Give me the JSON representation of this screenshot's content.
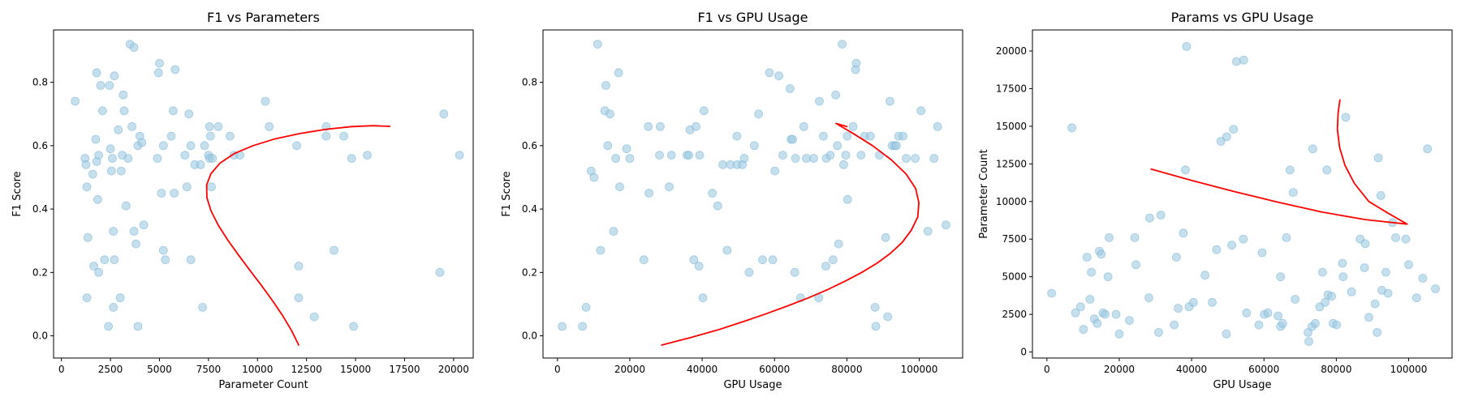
{
  "chart_data": [
    {
      "type": "scatter",
      "title": "F1 vs Parameters",
      "xlabel": "Parameter Count",
      "ylabel": "F1 Score",
      "xlim": [
        -400,
        21000
      ],
      "ylim": [
        -0.07,
        0.965
      ],
      "xticks": [
        0,
        2500,
        5000,
        7500,
        10000,
        12500,
        15000,
        17500,
        20000
      ],
      "xtick_labels": [
        "0",
        "2500",
        "5000",
        "7500",
        "10000",
        "12500",
        "15000",
        "17500",
        "20000"
      ],
      "yticks": [
        0.0,
        0.2,
        0.4,
        0.6,
        0.8
      ],
      "ytick_labels": [
        "0.0",
        "0.2",
        "0.4",
        "0.6",
        "0.8"
      ],
      "grid": false,
      "point_color": "#9ecae1",
      "line_color": "#ff0000",
      "points": [
        [
          700,
          0.74
        ],
        [
          1200,
          0.56
        ],
        [
          1250,
          0.54
        ],
        [
          1300,
          0.47
        ],
        [
          1350,
          0.31
        ],
        [
          1300,
          0.12
        ],
        [
          1600,
          0.51
        ],
        [
          1650,
          0.22
        ],
        [
          1750,
          0.62
        ],
        [
          1800,
          0.83
        ],
        [
          1800,
          0.55
        ],
        [
          1850,
          0.43
        ],
        [
          1900,
          0.57
        ],
        [
          1900,
          0.2
        ],
        [
          2000,
          0.79
        ],
        [
          2100,
          0.71
        ],
        [
          2200,
          0.24
        ],
        [
          2400,
          0.03
        ],
        [
          2450,
          0.79
        ],
        [
          2500,
          0.59
        ],
        [
          2550,
          0.52
        ],
        [
          2600,
          0.56
        ],
        [
          2650,
          0.33
        ],
        [
          2700,
          0.82
        ],
        [
          2650,
          0.09
        ],
        [
          2700,
          0.24
        ],
        [
          2900,
          0.65
        ],
        [
          3000,
          0.12
        ],
        [
          3050,
          0.52
        ],
        [
          3100,
          0.57
        ],
        [
          3150,
          0.76
        ],
        [
          3200,
          0.71
        ],
        [
          3300,
          0.41
        ],
        [
          3400,
          0.56
        ],
        [
          3500,
          0.92
        ],
        [
          3600,
          0.66
        ],
        [
          3700,
          0.33
        ],
        [
          3700,
          0.91
        ],
        [
          3800,
          0.29
        ],
        [
          3900,
          0.03
        ],
        [
          3900,
          0.6
        ],
        [
          4000,
          0.63
        ],
        [
          4100,
          0.61
        ],
        [
          4200,
          0.35
        ],
        [
          4900,
          0.56
        ],
        [
          4950,
          0.83
        ],
        [
          5000,
          0.86
        ],
        [
          5100,
          0.45
        ],
        [
          5200,
          0.6
        ],
        [
          5200,
          0.27
        ],
        [
          5300,
          0.24
        ],
        [
          5600,
          0.63
        ],
        [
          5700,
          0.71
        ],
        [
          5750,
          0.45
        ],
        [
          5800,
          0.84
        ],
        [
          6300,
          0.57
        ],
        [
          6400,
          0.47
        ],
        [
          6500,
          0.7
        ],
        [
          6600,
          0.6
        ],
        [
          6600,
          0.24
        ],
        [
          6800,
          0.54
        ],
        [
          7100,
          0.54
        ],
        [
          7200,
          0.09
        ],
        [
          7300,
          0.6
        ],
        [
          7500,
          0.57
        ],
        [
          7550,
          0.56
        ],
        [
          7550,
          0.66
        ],
        [
          7600,
          0.63
        ],
        [
          7650,
          0.47
        ],
        [
          7700,
          0.56
        ],
        [
          8000,
          0.66
        ],
        [
          8600,
          0.63
        ],
        [
          8800,
          0.57
        ],
        [
          9100,
          0.57
        ],
        [
          10400,
          0.74
        ],
        [
          10600,
          0.66
        ],
        [
          12000,
          0.6
        ],
        [
          12100,
          0.22
        ],
        [
          12100,
          0.12
        ],
        [
          12900,
          0.06
        ],
        [
          13500,
          0.66
        ],
        [
          13500,
          0.63
        ],
        [
          13900,
          0.27
        ],
        [
          14400,
          0.63
        ],
        [
          14800,
          0.56
        ],
        [
          14900,
          0.03
        ],
        [
          15600,
          0.57
        ],
        [
          19300,
          0.2
        ],
        [
          19500,
          0.7
        ],
        [
          20300,
          0.57
        ]
      ],
      "curve_x": [
        12101.6,
        11740,
        11298,
        10787,
        10224,
        9632,
        9040,
        8482,
        7998,
        7629,
        7419,
        7406,
        7624,
        8093,
        8815,
        9774,
        10929,
        12214,
        13541,
        14802,
        15880,
        16748
      ],
      "curve_y": [
        -0.029,
        0.016,
        0.062,
        0.109,
        0.157,
        0.205,
        0.254,
        0.302,
        0.349,
        0.394,
        0.436,
        0.476,
        0.512,
        0.545,
        0.575,
        0.6,
        0.622,
        0.639,
        0.652,
        0.66,
        0.663,
        0.661
      ]
    },
    {
      "type": "scatter",
      "title": "F1 vs GPU Usage",
      "xlabel": "GPU Usage",
      "ylabel": "F1 Score",
      "xlim": [
        -4000,
        112000
      ],
      "ylim": [
        -0.07,
        0.965
      ],
      "xticks": [
        0,
        20000,
        40000,
        60000,
        80000,
        100000
      ],
      "xtick_labels": [
        "0",
        "20000",
        "40000",
        "60000",
        "80000",
        "100000"
      ],
      "yticks": [
        0.0,
        0.2,
        0.4,
        0.6,
        0.8
      ],
      "ytick_labels": [
        "0.0",
        "0.2",
        "0.4",
        "0.6",
        "0.8"
      ],
      "grid": false,
      "point_color": "#9ecae1",
      "line_color": "#ff0000",
      "points": [
        [
          1300,
          0.03
        ],
        [
          6900,
          0.03
        ],
        [
          7900,
          0.09
        ],
        [
          9300,
          0.52
        ],
        [
          10100,
          0.5
        ],
        [
          11100,
          0.92
        ],
        [
          11900,
          0.27
        ],
        [
          13100,
          0.71
        ],
        [
          13400,
          0.79
        ],
        [
          13900,
          0.6
        ],
        [
          14500,
          0.7
        ],
        [
          15500,
          0.33
        ],
        [
          16100,
          0.56
        ],
        [
          16900,
          0.83
        ],
        [
          17200,
          0.47
        ],
        [
          19100,
          0.59
        ],
        [
          20000,
          0.56
        ],
        [
          23900,
          0.24
        ],
        [
          25300,
          0.45
        ],
        [
          25100,
          0.66
        ],
        [
          28200,
          0.57
        ],
        [
          28400,
          0.66
        ],
        [
          30900,
          0.47
        ],
        [
          31500,
          0.57
        ],
        [
          35800,
          0.57
        ],
        [
          36300,
          0.57
        ],
        [
          36600,
          0.65
        ],
        [
          37700,
          0.24
        ],
        [
          38300,
          0.66
        ],
        [
          39100,
          0.22
        ],
        [
          39300,
          0.57
        ],
        [
          40200,
          0.12
        ],
        [
          40500,
          0.71
        ],
        [
          42800,
          0.45
        ],
        [
          44300,
          0.41
        ],
        [
          45700,
          0.54
        ],
        [
          46900,
          0.27
        ],
        [
          47800,
          0.54
        ],
        [
          49700,
          0.54
        ],
        [
          49600,
          0.63
        ],
        [
          51100,
          0.54
        ],
        [
          51600,
          0.56
        ],
        [
          53000,
          0.2
        ],
        [
          54400,
          0.6
        ],
        [
          55600,
          0.7
        ],
        [
          56700,
          0.24
        ],
        [
          58600,
          0.83
        ],
        [
          59500,
          0.24
        ],
        [
          60100,
          0.52
        ],
        [
          61200,
          0.82
        ],
        [
          62300,
          0.57
        ],
        [
          64300,
          0.78
        ],
        [
          64600,
          0.62
        ],
        [
          65000,
          0.62
        ],
        [
          65600,
          0.2
        ],
        [
          65800,
          0.56
        ],
        [
          67200,
          0.12
        ],
        [
          68100,
          0.66
        ],
        [
          68800,
          0.56
        ],
        [
          70800,
          0.56
        ],
        [
          72200,
          0.12
        ],
        [
          72400,
          0.74
        ],
        [
          73500,
          0.63
        ],
        [
          74200,
          0.22
        ],
        [
          74300,
          0.56
        ],
        [
          75400,
          0.57
        ],
        [
          76200,
          0.24
        ],
        [
          76900,
          0.76
        ],
        [
          77400,
          0.6
        ],
        [
          77700,
          0.29
        ],
        [
          78700,
          0.92
        ],
        [
          79100,
          0.54
        ],
        [
          79700,
          0.57
        ],
        [
          80100,
          0.63
        ],
        [
          80200,
          0.43
        ],
        [
          81700,
          0.66
        ],
        [
          82400,
          0.84
        ],
        [
          82600,
          0.86
        ],
        [
          83900,
          0.57
        ],
        [
          84900,
          0.63
        ],
        [
          86500,
          0.63
        ],
        [
          87800,
          0.09
        ],
        [
          88000,
          0.03
        ],
        [
          89000,
          0.57
        ],
        [
          90700,
          0.31
        ],
        [
          91300,
          0.06
        ],
        [
          91900,
          0.74
        ],
        [
          92500,
          0.6
        ],
        [
          93200,
          0.6
        ],
        [
          93700,
          0.6
        ],
        [
          94300,
          0.63
        ],
        [
          95500,
          0.63
        ],
        [
          96400,
          0.56
        ],
        [
          98900,
          0.56
        ],
        [
          100500,
          0.71
        ],
        [
          102400,
          0.33
        ],
        [
          104100,
          0.56
        ],
        [
          105100,
          0.66
        ],
        [
          107400,
          0.35
        ]
      ],
      "curve_x": [
        28800,
        36900,
        44700,
        51400,
        57800,
        63800,
        69400,
        74700,
        79600,
        84100,
        88300,
        92000,
        95300,
        97800,
        99600,
        99900,
        99000,
        96400,
        92300,
        87100,
        81500,
        77000,
        80000
      ],
      "curve_y": [
        -0.029,
        -0.005,
        0.02,
        0.045,
        0.07,
        0.095,
        0.12,
        0.146,
        0.173,
        0.2,
        0.229,
        0.26,
        0.295,
        0.333,
        0.375,
        0.42,
        0.465,
        0.51,
        0.555,
        0.6,
        0.64,
        0.67,
        0.66
      ]
    },
    {
      "type": "scatter",
      "title": "Params vs GPU Usage",
      "xlabel": "GPU Usage",
      "ylabel": "Parameter Count",
      "xlim": [
        -4000,
        112000
      ],
      "ylim": [
        -400,
        21400
      ],
      "xticks": [
        0,
        20000,
        40000,
        60000,
        80000,
        100000
      ],
      "xtick_labels": [
        "0",
        "20000",
        "40000",
        "60000",
        "80000",
        "100000"
      ],
      "yticks": [
        0,
        2500,
        5000,
        7500,
        10000,
        12500,
        15000,
        17500,
        20000
      ],
      "ytick_labels": [
        "0",
        "2500",
        "5000",
        "7500",
        "10000",
        "12500",
        "15000",
        "17500",
        "20000"
      ],
      "grid": false,
      "point_color": "#9ecae1",
      "line_color": "#ff0000",
      "points": [
        [
          1300,
          3900
        ],
        [
          6900,
          14900
        ],
        [
          7900,
          2600
        ],
        [
          9300,
          3000
        ],
        [
          10100,
          1500
        ],
        [
          11100,
          6300
        ],
        [
          11900,
          3500
        ],
        [
          12300,
          5300
        ],
        [
          13100,
          2200
        ],
        [
          13900,
          1900
        ],
        [
          14500,
          6700
        ],
        [
          15000,
          6500
        ],
        [
          15500,
          2600
        ],
        [
          16100,
          2500
        ],
        [
          16900,
          5000
        ],
        [
          17200,
          7600
        ],
        [
          19100,
          2500
        ],
        [
          20000,
          1200
        ],
        [
          22800,
          2100
        ],
        [
          24300,
          7600
        ],
        [
          24600,
          5800
        ],
        [
          28200,
          3600
        ],
        [
          28400,
          8900
        ],
        [
          30900,
          1300
        ],
        [
          31500,
          9100
        ],
        [
          35200,
          1800
        ],
        [
          35800,
          6300
        ],
        [
          36300,
          2900
        ],
        [
          37700,
          7900
        ],
        [
          38300,
          12100
        ],
        [
          38600,
          20300
        ],
        [
          39300,
          3000
        ],
        [
          40500,
          3300
        ],
        [
          43700,
          5100
        ],
        [
          45700,
          3300
        ],
        [
          46900,
          6800
        ],
        [
          48100,
          14000
        ],
        [
          49600,
          1200
        ],
        [
          49700,
          14300
        ],
        [
          51100,
          7100
        ],
        [
          51600,
          14800
        ],
        [
          52400,
          19300
        ],
        [
          54300,
          7500
        ],
        [
          54400,
          19400
        ],
        [
          55200,
          2600
        ],
        [
          58600,
          1800
        ],
        [
          59500,
          6600
        ],
        [
          60100,
          2500
        ],
        [
          61100,
          2600
        ],
        [
          63900,
          2400
        ],
        [
          64600,
          1700
        ],
        [
          64600,
          5000
        ],
        [
          65200,
          1900
        ],
        [
          66200,
          7600
        ],
        [
          67200,
          12100
        ],
        [
          68100,
          10600
        ],
        [
          68600,
          3500
        ],
        [
          72200,
          1300
        ],
        [
          72400,
          700
        ],
        [
          73300,
          1700
        ],
        [
          73500,
          13500
        ],
        [
          74200,
          1900
        ],
        [
          75400,
          3000
        ],
        [
          76200,
          5300
        ],
        [
          76900,
          3300
        ],
        [
          77400,
          12100
        ],
        [
          77700,
          3800
        ],
        [
          78700,
          3700
        ],
        [
          79100,
          1900
        ],
        [
          80100,
          1800
        ],
        [
          81700,
          5900
        ],
        [
          81900,
          5000
        ],
        [
          82600,
          15600
        ],
        [
          84200,
          4000
        ],
        [
          86600,
          7500
        ],
        [
          87800,
          5600
        ],
        [
          88000,
          7200
        ],
        [
          89000,
          2300
        ],
        [
          90700,
          3200
        ],
        [
          91300,
          1300
        ],
        [
          91600,
          12900
        ],
        [
          92300,
          10400
        ],
        [
          92600,
          4100
        ],
        [
          93700,
          5300
        ],
        [
          94300,
          3900
        ],
        [
          95500,
          8600
        ],
        [
          96400,
          7600
        ],
        [
          99200,
          7500
        ],
        [
          100000,
          5800
        ],
        [
          102200,
          3600
        ],
        [
          103900,
          4900
        ],
        [
          105200,
          13500
        ],
        [
          107400,
          4200
        ]
      ],
      "curve_x": [
        28800,
        40000,
        52000,
        64000,
        76000,
        88000,
        99600,
        94500,
        89000,
        85000,
        82400,
        80900,
        80300,
        80500,
        81000
      ],
      "curve_y": [
        12150,
        11400,
        10650,
        9950,
        9300,
        8800,
        8500,
        9200,
        10000,
        11200,
        12400,
        13600,
        14800,
        15900,
        16750
      ]
    }
  ]
}
